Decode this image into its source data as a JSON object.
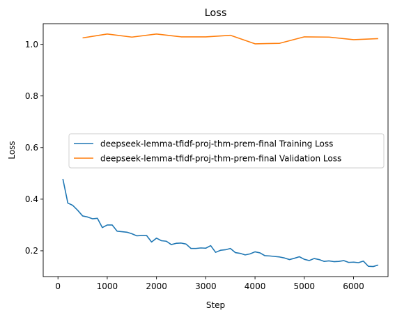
{
  "chart_data": {
    "type": "line",
    "title": "Loss",
    "xlabel": "Step",
    "ylabel": "Loss",
    "xlim": [
      -300,
      6700
    ],
    "ylim": [
      0.1,
      1.08
    ],
    "xticks": [
      0,
      1000,
      2000,
      3000,
      4000,
      5000,
      6000
    ],
    "yticks": [
      0.2,
      0.4,
      0.6,
      0.8,
      1.0
    ],
    "xtick_labels": [
      "0",
      "1000",
      "2000",
      "3000",
      "4000",
      "5000",
      "6000"
    ],
    "ytick_labels": [
      "0.2",
      "0.4",
      "0.6",
      "0.8",
      "1.0"
    ],
    "grid": false,
    "legend_position": "center-right",
    "series": [
      {
        "name": "deepseek-lemma-tfidf-proj-thm-prem-final Training Loss",
        "color": "#1f77b4",
        "x": [
          100,
          200,
          300,
          400,
          500,
          600,
          700,
          800,
          900,
          1000,
          1100,
          1200,
          1300,
          1400,
          1500,
          1600,
          1700,
          1800,
          1900,
          2000,
          2100,
          2200,
          2300,
          2400,
          2500,
          2600,
          2700,
          2800,
          2900,
          3000,
          3100,
          3200,
          3300,
          3400,
          3500,
          3600,
          3700,
          3800,
          3900,
          4000,
          4100,
          4200,
          4300,
          4400,
          4500,
          4600,
          4700,
          4800,
          4900,
          5000,
          5100,
          5200,
          5300,
          5400,
          5500,
          5600,
          5700,
          5800,
          5900,
          6000,
          6100,
          6200,
          6300,
          6400,
          6500
        ],
        "y": [
          0.478,
          0.385,
          0.376,
          0.357,
          0.335,
          0.331,
          0.324,
          0.326,
          0.29,
          0.3,
          0.3,
          0.276,
          0.274,
          0.272,
          0.266,
          0.258,
          0.259,
          0.259,
          0.234,
          0.249,
          0.239,
          0.237,
          0.224,
          0.229,
          0.23,
          0.226,
          0.209,
          0.209,
          0.211,
          0.21,
          0.22,
          0.194,
          0.202,
          0.204,
          0.209,
          0.193,
          0.19,
          0.184,
          0.188,
          0.196,
          0.192,
          0.181,
          0.18,
          0.178,
          0.176,
          0.172,
          0.166,
          0.171,
          0.177,
          0.167,
          0.162,
          0.17,
          0.166,
          0.159,
          0.161,
          0.158,
          0.159,
          0.162,
          0.155,
          0.156,
          0.154,
          0.16,
          0.14,
          0.139,
          0.145
        ]
      },
      {
        "name": "deepseek-lemma-tfidf-proj-thm-prem-final Validation Loss",
        "color": "#ff7f0e",
        "x": [
          500,
          1000,
          1500,
          2000,
          2500,
          3000,
          3500,
          4000,
          4500,
          5000,
          5500,
          6000,
          6500
        ],
        "y": [
          1.025,
          1.04,
          1.028,
          1.04,
          1.029,
          1.029,
          1.035,
          1.002,
          1.004,
          1.029,
          1.028,
          1.018,
          1.022
        ]
      }
    ]
  }
}
